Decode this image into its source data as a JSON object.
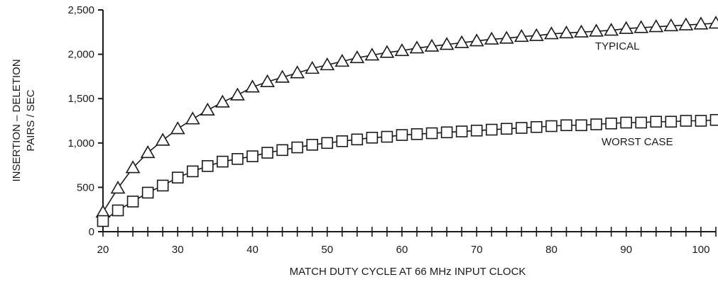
{
  "chart_data": {
    "type": "line",
    "title": "",
    "xlabel": "MATCH DUTY CYCLE AT 66 MHz INPUT CLOCK",
    "ylabel_line1": "INSERTION – DELETION",
    "ylabel_line2": "PAIRS / SEC",
    "xlim": [
      20,
      102
    ],
    "ylim": [
      0,
      2500
    ],
    "x_ticks": [
      20,
      30,
      40,
      50,
      60,
      70,
      80,
      90,
      100
    ],
    "x_tick_labels": [
      "20",
      "30",
      "40",
      "50",
      "60",
      "70",
      "80",
      "90",
      "100"
    ],
    "y_ticks": [
      0,
      500,
      1000,
      1500,
      2000,
      2500
    ],
    "y_tick_labels": [
      "0",
      "500",
      "1,000",
      "1,500",
      "2,000",
      "2,500"
    ],
    "x_minor_step": 2,
    "grid": false,
    "legend": "none",
    "x": [
      20,
      22,
      24,
      26,
      28,
      30,
      32,
      34,
      36,
      38,
      40,
      42,
      44,
      46,
      48,
      50,
      52,
      54,
      56,
      58,
      60,
      62,
      64,
      66,
      68,
      70,
      72,
      74,
      76,
      78,
      80,
      82,
      84,
      86,
      88,
      90,
      92,
      94,
      96,
      98,
      100,
      102
    ],
    "series": [
      {
        "name": "TYPICAL",
        "marker": "triangle",
        "values": [
          220,
          490,
          720,
          890,
          1030,
          1160,
          1270,
          1370,
          1460,
          1540,
          1630,
          1690,
          1740,
          1790,
          1840,
          1880,
          1920,
          1960,
          1990,
          2020,
          2040,
          2070,
          2090,
          2110,
          2130,
          2150,
          2170,
          2180,
          2200,
          2210,
          2230,
          2240,
          2250,
          2260,
          2270,
          2290,
          2300,
          2310,
          2320,
          2330,
          2340,
          2350
        ]
      },
      {
        "name": "WORST CASE",
        "marker": "square",
        "values": [
          120,
          240,
          340,
          440,
          520,
          610,
          680,
          740,
          790,
          820,
          850,
          890,
          920,
          950,
          980,
          1000,
          1020,
          1040,
          1060,
          1070,
          1090,
          1100,
          1110,
          1120,
          1130,
          1140,
          1150,
          1160,
          1170,
          1180,
          1190,
          1200,
          1200,
          1210,
          1220,
          1230,
          1230,
          1240,
          1240,
          1250,
          1250,
          1260
        ]
      }
    ]
  }
}
